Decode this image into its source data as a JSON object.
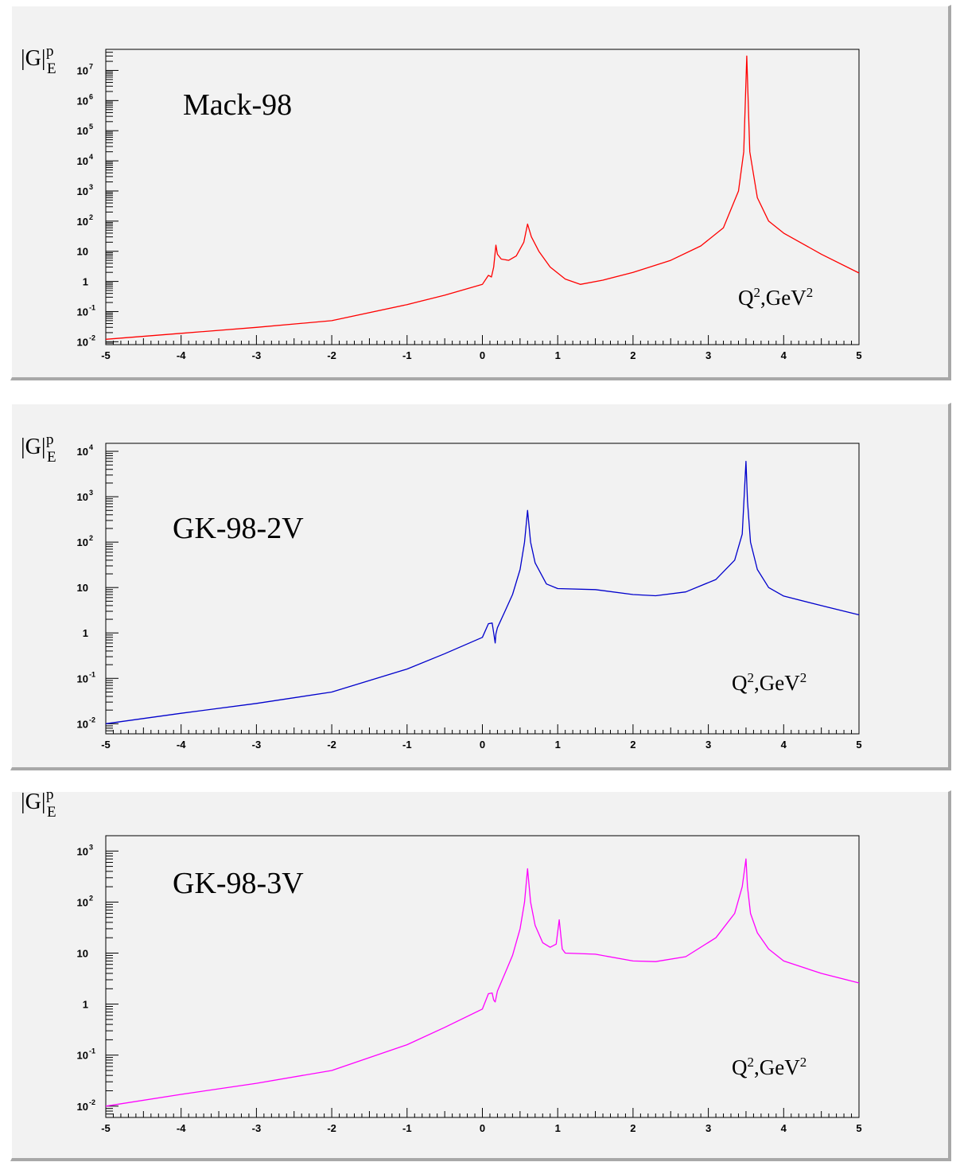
{
  "chart_data": [
    {
      "type": "line",
      "title": "Mack-98",
      "ylabel": "|G",
      "ylabel_sup": "p",
      "ylabel_sub": "E",
      "xlabel": "Q",
      "xlabel_sup1": "2",
      "xlabel_mid": ",GeV",
      "xlabel_sup2": "2",
      "yscale": "log",
      "xlim": [
        -5,
        5
      ],
      "ylim": [
        0.008,
        50000000
      ],
      "xticks": [
        "-5",
        "-4",
        "-3",
        "-2",
        "-1",
        "0",
        "1",
        "2",
        "3",
        "4",
        "5"
      ],
      "yticks": [
        {
          "base": "10",
          "exp": "-2"
        },
        {
          "base": "10",
          "exp": "-1"
        },
        {
          "base": "1",
          "exp": ""
        },
        {
          "base": "10",
          "exp": ""
        },
        {
          "base": "10",
          "exp": "2"
        },
        {
          "base": "10",
          "exp": "3"
        },
        {
          "base": "10",
          "exp": "4"
        },
        {
          "base": "10",
          "exp": "5"
        },
        {
          "base": "10",
          "exp": "6"
        },
        {
          "base": "10",
          "exp": "7"
        }
      ],
      "color": "#ff0000",
      "series": [
        {
          "x": [
            -5,
            -4,
            -3,
            -2,
            -1,
            -0.5,
            0,
            0.08,
            0.12,
            0.15,
            0.18,
            0.2,
            0.25,
            0.35,
            0.45,
            0.55,
            0.6,
            0.65,
            0.75,
            0.9,
            1.1,
            1.3,
            1.6,
            2.0,
            2.5,
            2.9,
            3.2,
            3.4,
            3.47,
            3.51,
            3.55,
            3.65,
            3.8,
            4.0,
            4.5,
            5.0
          ],
          "y": [
            0.012,
            0.019,
            0.03,
            0.05,
            0.17,
            0.35,
            0.8,
            1.6,
            1.4,
            3.0,
            16,
            8,
            5.5,
            5.0,
            7.0,
            20,
            80,
            30,
            10,
            3.0,
            1.2,
            0.8,
            1.1,
            2.0,
            5.0,
            15,
            60,
            1000,
            20000,
            30000000,
            20000,
            600,
            100,
            40,
            8,
            1.9
          ]
        }
      ]
    },
    {
      "type": "line",
      "title": "GK-98-2V",
      "ylabel": "|G",
      "ylabel_sup": "p",
      "ylabel_sub": "E",
      "xlabel": "Q",
      "xlabel_sup1": "2",
      "xlabel_mid": ",GeV",
      "xlabel_sup2": "2",
      "yscale": "log",
      "xlim": [
        -5,
        5
      ],
      "ylim": [
        0.006,
        15000
      ],
      "xticks": [
        "-5",
        "-4",
        "-3",
        "-2",
        "-1",
        "0",
        "1",
        "2",
        "3",
        "4",
        "5"
      ],
      "yticks": [
        {
          "base": "10",
          "exp": "-2"
        },
        {
          "base": "10",
          "exp": "-1"
        },
        {
          "base": "1",
          "exp": ""
        },
        {
          "base": "10",
          "exp": ""
        },
        {
          "base": "10",
          "exp": "2"
        },
        {
          "base": "10",
          "exp": "3"
        },
        {
          "base": "10",
          "exp": "4"
        }
      ],
      "color": "#0000cc",
      "series": [
        {
          "x": [
            -5,
            -4,
            -3,
            -2,
            -1,
            -0.5,
            0,
            0.08,
            0.13,
            0.15,
            0.17,
            0.18,
            0.2,
            0.3,
            0.4,
            0.5,
            0.56,
            0.6,
            0.64,
            0.7,
            0.85,
            1.0,
            1.5,
            2.0,
            2.3,
            2.7,
            3.1,
            3.35,
            3.45,
            3.5,
            3.52,
            3.56,
            3.65,
            3.8,
            4.0,
            4.5,
            5.0
          ],
          "y": [
            0.01,
            0.017,
            0.028,
            0.05,
            0.16,
            0.35,
            0.8,
            1.6,
            1.65,
            1.0,
            0.6,
            0.95,
            1.3,
            3.0,
            7.0,
            25,
            100,
            500,
            100,
            35,
            12,
            9.5,
            9.0,
            7.0,
            6.6,
            8.0,
            15,
            40,
            150,
            6000,
            800,
            100,
            25,
            10,
            6.5,
            4.0,
            2.5
          ]
        }
      ]
    },
    {
      "type": "line",
      "title": "GK-98-3V",
      "ylabel": "|G",
      "ylabel_sup": "p",
      "ylabel_sub": "E",
      "xlabel": "Q",
      "xlabel_sup1": "2",
      "xlabel_mid": ",GeV",
      "xlabel_sup2": "2",
      "yscale": "log",
      "xlim": [
        -5,
        5
      ],
      "ylim": [
        0.006,
        2000
      ],
      "xticks": [
        "-5",
        "-4",
        "-3",
        "-2",
        "-1",
        "0",
        "1",
        "2",
        "3",
        "4",
        "5"
      ],
      "yticks": [
        {
          "base": "10",
          "exp": "-2"
        },
        {
          "base": "10",
          "exp": "-1"
        },
        {
          "base": "1",
          "exp": ""
        },
        {
          "base": "10",
          "exp": ""
        },
        {
          "base": "10",
          "exp": "2"
        },
        {
          "base": "10",
          "exp": "3"
        }
      ],
      "color": "#ff00ff",
      "series": [
        {
          "x": [
            -5,
            -4,
            -3,
            -2,
            -1,
            -0.5,
            0,
            0.08,
            0.13,
            0.15,
            0.17,
            0.2,
            0.3,
            0.4,
            0.5,
            0.56,
            0.6,
            0.64,
            0.7,
            0.8,
            0.9,
            0.98,
            1.02,
            1.06,
            1.1,
            1.5,
            2.0,
            2.3,
            2.7,
            3.1,
            3.35,
            3.45,
            3.5,
            3.52,
            3.56,
            3.65,
            3.8,
            4.0,
            4.5,
            5.0
          ],
          "y": [
            0.01,
            0.017,
            0.028,
            0.05,
            0.16,
            0.35,
            0.8,
            1.6,
            1.65,
            1.2,
            1.1,
            1.8,
            4.0,
            9.0,
            30,
            100,
            450,
            100,
            35,
            16,
            13,
            15,
            45,
            12,
            10,
            9.5,
            7.0,
            6.8,
            8.5,
            20,
            60,
            200,
            700,
            200,
            60,
            25,
            12,
            7.0,
            4.0,
            2.6
          ]
        }
      ]
    }
  ]
}
